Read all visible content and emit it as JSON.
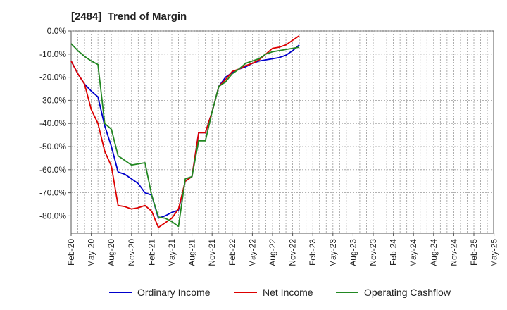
{
  "chart_data": {
    "type": "line",
    "title": "[2484]  Trend of Margin",
    "xlabel": "",
    "ylabel": "",
    "ylim": [
      -87.5,
      0
    ],
    "yticks": [
      "0.0%",
      "-10.0%",
      "-20.0%",
      "-30.0%",
      "-40.0%",
      "-50.0%",
      "-60.0%",
      "-70.0%",
      "-80.0%"
    ],
    "ytick_values": [
      0,
      -10,
      -20,
      -30,
      -40,
      -50,
      -60,
      -70,
      -80
    ],
    "xticks": [
      "Feb-20",
      "May-20",
      "Aug-20",
      "Nov-20",
      "Feb-21",
      "May-21",
      "Aug-21",
      "Nov-21",
      "Feb-22",
      "May-22",
      "Aug-22",
      "Nov-22",
      "Feb-23",
      "May-23",
      "Aug-23",
      "Nov-23",
      "Feb-24",
      "May-24",
      "Aug-24",
      "Nov-24",
      "Feb-25",
      "May-25"
    ],
    "grid": true,
    "legend_position": "bottom",
    "series": [
      {
        "name": "Ordinary Income",
        "color": "#0000cc",
        "values": [
          -13.0,
          -18.5,
          -23.0,
          -26.0,
          -28.5,
          -41.0,
          -50.0,
          -61.0,
          -62.0,
          -64.0,
          -66.0,
          -70.0,
          -71.0,
          -81.0,
          -80.0,
          -78.5,
          -77.5,
          -65.0,
          -63.0,
          -44.0,
          -44.0,
          -35.0,
          -24.0,
          -20.0,
          -18.0,
          -16.5,
          -15.5,
          -14.0,
          -13.0,
          -12.5,
          -12.0,
          -11.5,
          -10.5,
          -8.5,
          -6.0
        ]
      },
      {
        "name": "Net Income",
        "color": "#dd0000",
        "values": [
          -13.0,
          -18.5,
          -23.0,
          -34.0,
          -40.0,
          -52.0,
          -58.5,
          -75.5,
          -76.0,
          -77.0,
          -76.5,
          -75.5,
          -78.0,
          -85.0,
          -83.0,
          -81.0,
          -77.0,
          -65.0,
          -63.0,
          -44.0,
          -44.0,
          -35.0,
          -24.0,
          -21.0,
          -17.5,
          -16.5,
          -15.0,
          -14.0,
          -12.5,
          -10.0,
          -7.5,
          -7.0,
          -6.0,
          -4.0,
          -2.0
        ]
      },
      {
        "name": "Operating Cashflow",
        "color": "#228822",
        "values": [
          -5.5,
          -8.5,
          -11.0,
          -13.0,
          -14.5,
          -40.0,
          -42.5,
          -54.0,
          -56.0,
          -58.0,
          -57.5,
          -57.0,
          -71.0,
          -80.5,
          -81.0,
          -82.5,
          -84.5,
          -64.0,
          -63.0,
          -47.5,
          -47.5,
          -35.0,
          -24.0,
          -22.0,
          -18.5,
          -16.5,
          -14.0,
          -13.0,
          -12.0,
          -10.0,
          -9.0,
          -8.5,
          -8.0,
          -7.5,
          -7.0
        ]
      }
    ]
  }
}
